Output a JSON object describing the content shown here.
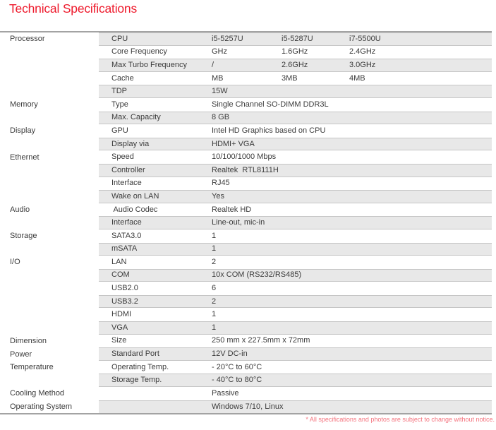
{
  "page_title": "Technical Specifications",
  "footnote": "* All specifications and photos are subject to change without notice.",
  "colors": {
    "title_red": "#ee1b2d",
    "footnote_red": "#f4737e",
    "row_shade": "#e8e8e8",
    "band_line": "#c6c6c6",
    "rule_gray": "#a3a3a3",
    "text_gray": "#3b3b3b"
  },
  "table": {
    "rows": [
      {
        "category": "Processor",
        "label": "CPU",
        "values": [
          "i5-5257U",
          "i5-5287U",
          "i7-5500U"
        ]
      },
      {
        "category": "",
        "label": "Core Frequency",
        "values": [
          "GHz",
          "1.6GHz",
          "2.4GHz"
        ]
      },
      {
        "category": "",
        "label": "Max Turbo Frequency",
        "values": [
          "/",
          "2.6GHz",
          "3.0GHz"
        ]
      },
      {
        "category": "",
        "label": "Cache",
        "values": [
          "MB",
          "3MB",
          "4MB"
        ]
      },
      {
        "category": "",
        "label": "TDP",
        "values": [
          "15W"
        ]
      },
      {
        "category": "Memory",
        "label": "Type",
        "values": [
          "Single Channel SO-DIMM DDR3L"
        ]
      },
      {
        "category": "",
        "label": "Max. Capacity",
        "values": [
          "8 GB"
        ]
      },
      {
        "category": "Display",
        "label": "GPU",
        "values": [
          "Intel HD Graphics based on CPU"
        ]
      },
      {
        "category": "",
        "label": "Display via",
        "values": [
          "HDMI+ VGA"
        ]
      },
      {
        "category": "Ethernet",
        "label": "Speed",
        "values": [
          "10/100/1000 Mbps"
        ]
      },
      {
        "category": "",
        "label": "Controller",
        "values": [
          "Realtek  RTL8111H"
        ]
      },
      {
        "category": "",
        "label": "Interface",
        "values": [
          "RJ45"
        ]
      },
      {
        "category": "",
        "label": "Wake on LAN",
        "values": [
          "Yes"
        ]
      },
      {
        "category": "Audio",
        "label": " Audio Codec",
        "values": [
          "Realtek HD"
        ]
      },
      {
        "category": "",
        "label": "Interface",
        "values": [
          "Line-out, mic-in"
        ]
      },
      {
        "category": "Storage",
        "label": "SATA3.0",
        "values": [
          "1"
        ]
      },
      {
        "category": "",
        "label": "mSATA",
        "values": [
          "1"
        ]
      },
      {
        "category": "I/O",
        "label": "LAN",
        "values": [
          "2"
        ]
      },
      {
        "category": "",
        "label": "COM",
        "values": [
          "10x COM (RS232/RS485)"
        ]
      },
      {
        "category": "",
        "label": "USB2.0",
        "values": [
          "6"
        ]
      },
      {
        "category": "",
        "label": "USB3.2",
        "values": [
          "2"
        ]
      },
      {
        "category": "",
        "label": "HDMI",
        "values": [
          "1"
        ]
      },
      {
        "category": "",
        "label": "VGA",
        "values": [
          "1"
        ]
      },
      {
        "category": "Dimension",
        "label": "Size",
        "values": [
          "250 mm x 227.5mm x 72mm"
        ]
      },
      {
        "category": "Power",
        "label": "Standard Port",
        "values": [
          "12V DC-in"
        ]
      },
      {
        "category": "Temperature",
        "label": "Operating Temp.",
        "values": [
          "- 20°C to 60°C"
        ]
      },
      {
        "category": "",
        "label": "Storage Temp.",
        "values": [
          "- 40°C to 80°C"
        ]
      },
      {
        "category": "Cooling Method",
        "label": "",
        "values": [
          "Passive"
        ]
      },
      {
        "category": "Operating System",
        "label": "",
        "values": [
          "Windows 7/10, Linux"
        ]
      }
    ]
  }
}
